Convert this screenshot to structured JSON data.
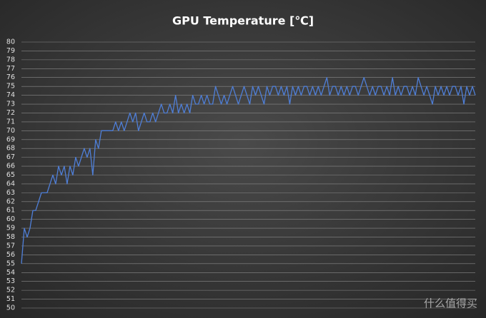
{
  "chart_data": {
    "type": "line",
    "title": "GPU Temperature [℃]",
    "color": "#4f7fd8",
    "grid": true,
    "ylim": [
      50,
      80
    ],
    "yticks": [
      50,
      51,
      52,
      53,
      54,
      55,
      56,
      57,
      58,
      59,
      60,
      61,
      62,
      63,
      64,
      65,
      66,
      67,
      68,
      69,
      70,
      71,
      72,
      73,
      74,
      75,
      76,
      77,
      78,
      79,
      80
    ],
    "values": [
      55,
      59,
      58,
      59,
      61,
      61,
      62,
      63,
      63,
      63,
      64,
      65,
      64,
      66,
      65,
      66,
      64,
      66,
      65,
      67,
      66,
      67,
      68,
      67,
      68,
      65,
      69,
      68,
      70,
      70,
      70,
      70,
      70,
      71,
      70,
      71,
      70,
      71,
      72,
      71,
      72,
      70,
      71,
      72,
      71,
      71,
      72,
      71,
      72,
      73,
      72,
      72,
      73,
      72,
      74,
      72,
      73,
      72,
      73,
      72,
      74,
      73,
      73,
      74,
      73,
      74,
      73,
      73,
      75,
      74,
      73,
      74,
      73,
      74,
      75,
      74,
      73,
      74,
      75,
      74,
      73,
      75,
      74,
      75,
      74,
      73,
      75,
      74,
      75,
      75,
      74,
      75,
      74,
      75,
      73,
      75,
      74,
      75,
      74,
      75,
      75,
      74,
      75,
      74,
      75,
      74,
      75,
      76,
      74,
      75,
      75,
      74,
      75,
      74,
      75,
      74,
      75,
      75,
      74,
      75,
      76,
      75,
      74,
      75,
      74,
      75,
      75,
      74,
      75,
      74,
      76,
      74,
      75,
      74,
      75,
      75,
      74,
      75,
      74,
      76,
      75,
      74,
      75,
      74,
      73,
      75,
      74,
      75,
      74,
      75,
      74,
      75,
      75,
      74,
      75,
      73,
      75,
      74,
      75,
      74
    ],
    "watermark": "什么值得买"
  }
}
